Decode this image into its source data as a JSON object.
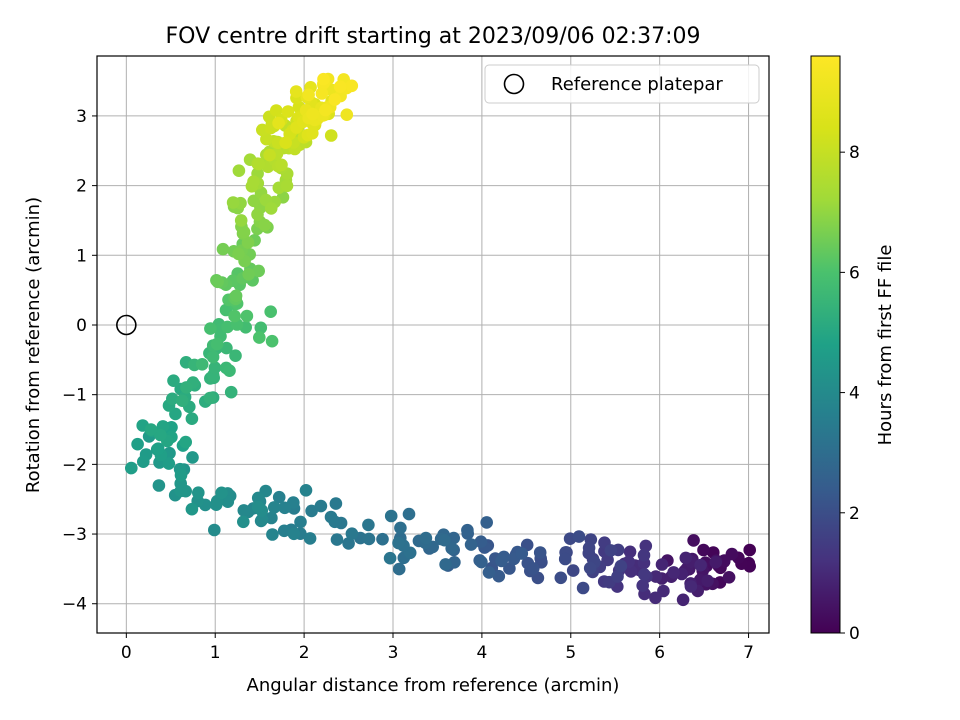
{
  "chart_data": {
    "type": "scatter",
    "title": "FOV centre drift starting at 2023/09/06 02:37:09",
    "xlabel": "Angular distance from reference (arcmin)",
    "ylabel": "Rotation from reference (arcmin)",
    "xlim": [
      -0.33,
      7.23
    ],
    "ylim": [
      -4.42,
      3.86
    ],
    "xticks": [
      "0",
      "1",
      "2",
      "3",
      "4",
      "5",
      "6",
      "7"
    ],
    "yticks": [
      "3",
      "2",
      "1",
      "0",
      "−1",
      "−2",
      "−3",
      "−4"
    ],
    "xtick_values": [
      0,
      1,
      2,
      3,
      4,
      5,
      6,
      7
    ],
    "ytick_values": [
      3,
      2,
      1,
      0,
      -1,
      -2,
      -3,
      -4
    ],
    "grid": true,
    "legend": {
      "location": "top-right",
      "entries": [
        "Reference platepar"
      ]
    },
    "reference_point": {
      "x": 0,
      "y": 0,
      "label": "Reference platepar"
    },
    "colorbar": {
      "label": "Hours from first FF file",
      "colormap": "viridis",
      "range": [
        0,
        9.6
      ],
      "ticks": [
        "0",
        "2",
        "4",
        "6",
        "8"
      ],
      "tick_values": [
        0,
        2,
        4,
        6,
        8
      ]
    },
    "series_anchors": [
      {
        "h": 0.0,
        "x": 6.85,
        "y": -3.35
      },
      {
        "h": 0.6,
        "x": 6.4,
        "y": -3.6
      },
      {
        "h": 1.2,
        "x": 5.8,
        "y": -3.55
      },
      {
        "h": 1.8,
        "x": 5.05,
        "y": -3.35
      },
      {
        "h": 2.4,
        "x": 4.15,
        "y": -3.3
      },
      {
        "h": 3.0,
        "x": 3.2,
        "y": -3.1
      },
      {
        "h": 3.5,
        "x": 2.2,
        "y": -2.85
      },
      {
        "h": 4.0,
        "x": 1.3,
        "y": -2.7
      },
      {
        "h": 4.4,
        "x": 0.7,
        "y": -2.3
      },
      {
        "h": 4.7,
        "x": 0.3,
        "y": -1.8
      },
      {
        "h": 5.1,
        "x": 0.55,
        "y": -1.2
      },
      {
        "h": 5.5,
        "x": 1.0,
        "y": -0.6
      },
      {
        "h": 6.0,
        "x": 1.3,
        "y": 0.1
      },
      {
        "h": 6.5,
        "x": 1.2,
        "y": 0.9
      },
      {
        "h": 7.0,
        "x": 1.4,
        "y": 1.7
      },
      {
        "h": 7.5,
        "x": 1.6,
        "y": 2.3
      },
      {
        "h": 8.2,
        "x": 1.9,
        "y": 2.8
      },
      {
        "h": 9.0,
        "x": 2.15,
        "y": 3.2
      },
      {
        "h": 9.5,
        "x": 2.4,
        "y": 3.4
      }
    ],
    "point_count": 420,
    "jitter": {
      "x": 0.16,
      "y": 0.17
    }
  }
}
